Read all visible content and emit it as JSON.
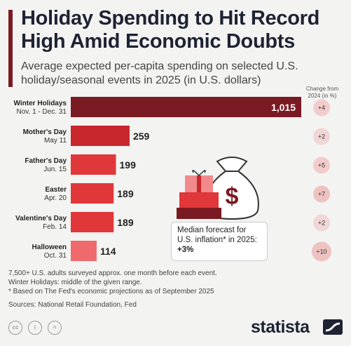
{
  "header": {
    "title": "Holiday Spending to Hit Record High Amid Economic Doubts",
    "subtitle": "Average expected per-capita spending on selected U.S. holiday/seasonal events in 2025 (in U.S. dollars)",
    "change_header_line1": "Change from",
    "change_header_line2": "2024 (in %)"
  },
  "chart_data": {
    "type": "bar",
    "orientation": "horizontal",
    "title": "Holiday Spending to Hit Record High Amid Economic Doubts",
    "subtitle": "Average expected per-capita spending on selected U.S. holiday/seasonal events in 2025 (in U.S. dollars)",
    "categories": [
      "Winter Holidays",
      "Mother's Day",
      "Father's Day",
      "Easter",
      "Valentine's Day",
      "Halloween"
    ],
    "dates": [
      "Nov. 1 - Dec. 31",
      "May 11",
      "Jun. 15",
      "Apr. 20",
      "Feb. 14",
      "Oct. 31"
    ],
    "values": [
      1015,
      259,
      199,
      189,
      189,
      114
    ],
    "value_labels": [
      "1,015",
      "259",
      "199",
      "189",
      "189",
      "114"
    ],
    "change_from_2024": [
      "+4",
      "+2",
      "+5",
      "+7",
      "+2",
      "+10"
    ],
    "bar_colors": [
      "#7a1a22",
      "#c7272d",
      "#e0373a",
      "#e0373a",
      "#e0373a",
      "#ee6a6c"
    ],
    "change_colors": [
      "#f2cccc",
      "#f2d6d6",
      "#f2cccc",
      "#efc2c2",
      "#f2d6d6",
      "#efc2c2"
    ],
    "xlim": [
      0,
      1015
    ],
    "grid": false,
    "legend": "none"
  },
  "callout": {
    "text": "Median forecast for U.S. inflation* in 2025:",
    "value": "+3%"
  },
  "footnotes": {
    "line1": "7,500+ U.S. adults surveyed approx. one month before each event.",
    "line2": "Winter Holidays: middle of the given range.",
    "line3": "* Based on The Fed's economic projections as of September 2025",
    "source": "Sources: National Retail Foundation, Fed"
  },
  "footer": {
    "brand": "statista",
    "icons": [
      "cc-icon",
      "by-icon",
      "equals-icon"
    ]
  },
  "colors": {
    "accent": "#7a1a22",
    "title": "#1e2333",
    "background": "#f3f3f2"
  }
}
